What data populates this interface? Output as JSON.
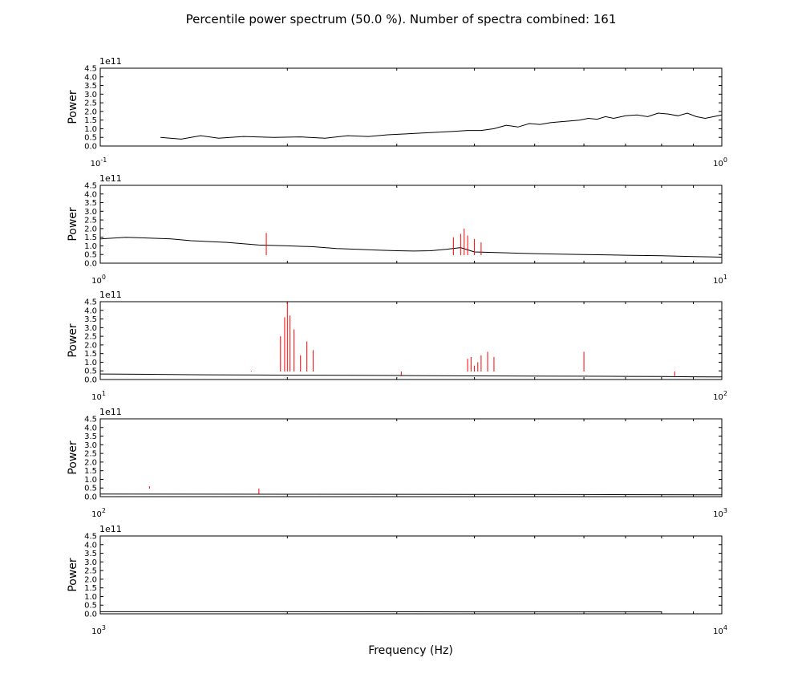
{
  "figure": {
    "title": "Percentile power spectrum (50.0 %). Number of spectra combined: 161",
    "xlabel": "Frequency (Hz)",
    "colors": {
      "percentile": "#000000",
      "spikes": "#ff0000",
      "axes": "#000000",
      "background": "#ffffff"
    }
  },
  "chart_data": [
    {
      "type": "line",
      "xscale": "log",
      "xlim": [
        0.1,
        1
      ],
      "ylim": [
        0,
        450000000000.0
      ],
      "ylabel": "Power",
      "offset_label": "1e11",
      "y_ticks": [
        "0.0",
        "0.5",
        "1.0",
        "1.5",
        "2.0",
        "2.5",
        "3.0",
        "3.5",
        "4.0",
        "4.5"
      ],
      "x_major_labels": [
        {
          "base": "10",
          "exp": "-1"
        },
        {
          "base": "10",
          "exp": "0"
        }
      ],
      "series": [
        {
          "role": "percentile",
          "x": [
            0.125,
            0.135,
            0.145,
            0.155,
            0.17,
            0.19,
            0.21,
            0.23,
            0.25,
            0.27,
            0.29,
            0.31,
            0.33,
            0.35,
            0.37,
            0.39,
            0.41,
            0.43,
            0.45,
            0.47,
            0.49,
            0.51,
            0.53,
            0.55,
            0.57,
            0.59,
            0.61,
            0.63,
            0.65,
            0.67,
            0.7,
            0.73,
            0.76,
            0.79,
            0.82,
            0.85,
            0.88,
            0.91,
            0.94,
            0.97,
            1.0
          ],
          "y": [
            50000000000.0,
            40000000000.0,
            60000000000.0,
            45000000000.0,
            55000000000.0,
            50000000000.0,
            53000000000.0,
            45000000000.0,
            60000000000.0,
            55000000000.0,
            65000000000.0,
            70000000000.0,
            75000000000.0,
            80000000000.0,
            85000000000.0,
            90000000000.0,
            90000000000.0,
            100000000000.0,
            120000000000.0,
            110000000000.0,
            130000000000.0,
            125000000000.0,
            135000000000.0,
            140000000000.0,
            145000000000.0,
            150000000000.0,
            160000000000.0,
            155000000000.0,
            170000000000.0,
            160000000000.0,
            175000000000.0,
            180000000000.0,
            170000000000.0,
            190000000000.0,
            185000000000.0,
            175000000000.0,
            190000000000.0,
            170000000000.0,
            160000000000.0,
            170000000000.0,
            180000000000.0
          ]
        }
      ]
    },
    {
      "type": "line",
      "xscale": "log",
      "xlim": [
        1,
        10
      ],
      "ylim": [
        0,
        450000000000.0
      ],
      "ylabel": "Power",
      "offset_label": "1e11",
      "y_ticks": [
        "0.0",
        "0.5",
        "1.0",
        "1.5",
        "2.0",
        "2.5",
        "3.0",
        "3.5",
        "4.0",
        "4.5"
      ],
      "x_major_labels": [
        {
          "base": "10",
          "exp": "0"
        },
        {
          "base": "10",
          "exp": "1"
        }
      ],
      "series": [
        {
          "role": "percentile",
          "x": [
            1.0,
            1.1,
            1.2,
            1.3,
            1.4,
            1.5,
            1.6,
            1.8,
            2.0,
            2.2,
            2.4,
            2.6,
            2.8,
            3.0,
            3.2,
            3.4,
            3.6,
            3.8,
            4.0,
            4.5,
            5.0,
            5.5,
            6.0,
            7.0,
            8.0,
            9.0,
            10.0
          ],
          "y": [
            140000000000.0,
            150000000000.0,
            145000000000.0,
            140000000000.0,
            130000000000.0,
            125000000000.0,
            120000000000.0,
            105000000000.0,
            100000000000.0,
            95000000000.0,
            85000000000.0,
            80000000000.0,
            75000000000.0,
            72000000000.0,
            70000000000.0,
            72000000000.0,
            80000000000.0,
            90000000000.0,
            65000000000.0,
            60000000000.0,
            55000000000.0,
            52000000000.0,
            50000000000.0,
            46000000000.0,
            43000000000.0,
            38000000000.0,
            35000000000.0
          ]
        },
        {
          "role": "spikes",
          "x": [
            1.85,
            3.7,
            3.8,
            3.85,
            3.9,
            4.0,
            4.1
          ],
          "y": [
            175000000000.0,
            150000000000.0,
            170000000000.0,
            200000000000.0,
            160000000000.0,
            140000000000.0,
            120000000000.0
          ]
        }
      ]
    },
    {
      "type": "line",
      "xscale": "log",
      "xlim": [
        10,
        100
      ],
      "ylim": [
        0,
        450000000000.0
      ],
      "ylabel": "Power",
      "offset_label": "1e11",
      "y_ticks": [
        "0.0",
        "0.5",
        "1.0",
        "1.5",
        "2.0",
        "2.5",
        "3.0",
        "3.5",
        "4.0",
        "4.5"
      ],
      "x_major_labels": [
        {
          "base": "10",
          "exp": "1"
        },
        {
          "base": "10",
          "exp": "2"
        }
      ],
      "series": [
        {
          "role": "percentile",
          "x": [
            10,
            12,
            14,
            16,
            18,
            20,
            25,
            30,
            40,
            50,
            60,
            70,
            80,
            90,
            100
          ],
          "y": [
            32000000000.0,
            30000000000.0,
            28000000000.0,
            27000000000.0,
            26000000000.0,
            25000000000.0,
            24000000000.0,
            23000000000.0,
            21000000000.0,
            20000000000.0,
            19000000000.0,
            18000000000.0,
            17000000000.0,
            16000000000.0,
            15000000000.0
          ]
        },
        {
          "role": "spikes",
          "x": [
            17.5,
            19.5,
            19.8,
            20.0,
            20.2,
            20.5,
            21.0,
            21.5,
            22.0,
            30.5,
            39.0,
            39.5,
            40.0,
            40.5,
            41.0,
            42.0,
            43.0,
            60.0,
            84.0
          ],
          "y": [
            50000000000.0,
            250000000000.0,
            360000000000.0,
            450000000000.0,
            370000000000.0,
            290000000000.0,
            140000000000.0,
            220000000000.0,
            170000000000.0,
            25000000000.0,
            120000000000.0,
            130000000000.0,
            80000000000.0,
            100000000000.0,
            140000000000.0,
            160000000000.0,
            130000000000.0,
            160000000000.0,
            20000000000.0
          ]
        }
      ]
    },
    {
      "type": "line",
      "xscale": "log",
      "xlim": [
        100,
        1000
      ],
      "ylim": [
        0,
        450000000000.0
      ],
      "ylabel": "Power",
      "offset_label": "1e11",
      "y_ticks": [
        "0.0",
        "0.5",
        "1.0",
        "1.5",
        "2.0",
        "2.5",
        "3.0",
        "3.5",
        "4.0",
        "4.5"
      ],
      "x_major_labels": [
        {
          "base": "10",
          "exp": "2"
        },
        {
          "base": "10",
          "exp": "3"
        }
      ],
      "series": [
        {
          "role": "percentile",
          "x": [
            100,
            200,
            400,
            600,
            800,
            1000
          ],
          "y": [
            15000000000.0,
            14000000000.0,
            13000000000.0,
            12000000000.0,
            11000000000.0,
            10000000000.0
          ]
        },
        {
          "role": "spikes",
          "x": [
            120,
            180
          ],
          "y": [
            60000000000.0,
            15000000000.0
          ]
        }
      ]
    },
    {
      "type": "line",
      "xscale": "log",
      "xlim": [
        1000,
        10000
      ],
      "ylim": [
        0,
        450000000000.0
      ],
      "ylabel": "Power",
      "offset_label": "1e11",
      "y_ticks": [
        "0.0",
        "0.5",
        "1.0",
        "1.5",
        "2.0",
        "2.5",
        "3.0",
        "3.5",
        "4.0",
        "4.5"
      ],
      "x_major_labels": [
        {
          "base": "10",
          "exp": "3"
        },
        {
          "base": "10",
          "exp": "4"
        }
      ],
      "series": [
        {
          "role": "percentile",
          "x": [
            1000,
            2000,
            4000,
            6000,
            8000
          ],
          "y": [
            12000000000.0,
            12000000000.0,
            11000000000.0,
            11000000000.0,
            11000000000.0
          ]
        }
      ]
    }
  ]
}
